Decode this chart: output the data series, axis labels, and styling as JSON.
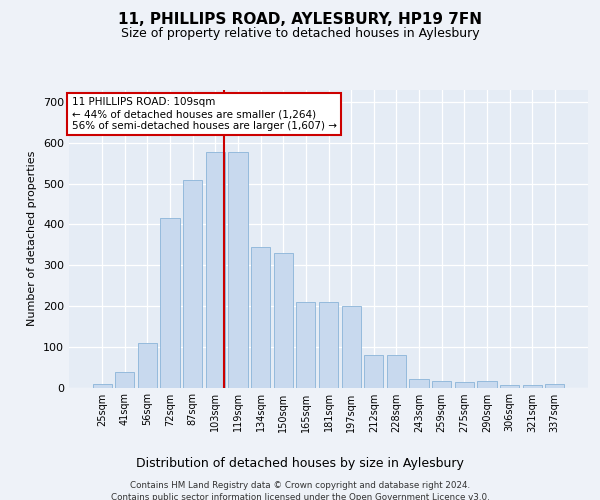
{
  "title1": "11, PHILLIPS ROAD, AYLESBURY, HP19 7FN",
  "title2": "Size of property relative to detached houses in Aylesbury",
  "xlabel": "Distribution of detached houses by size in Aylesbury",
  "ylabel": "Number of detached properties",
  "categories": [
    "25sqm",
    "41sqm",
    "56sqm",
    "72sqm",
    "87sqm",
    "103sqm",
    "119sqm",
    "134sqm",
    "150sqm",
    "165sqm",
    "181sqm",
    "197sqm",
    "212sqm",
    "228sqm",
    "243sqm",
    "259sqm",
    "275sqm",
    "290sqm",
    "306sqm",
    "321sqm",
    "337sqm"
  ],
  "values": [
    8,
    37,
    110,
    415,
    510,
    578,
    578,
    345,
    330,
    210,
    210,
    200,
    80,
    80,
    22,
    15,
    13,
    15,
    5,
    7,
    8
  ],
  "bar_color": "#c8d9ee",
  "bar_edge_color": "#8ab4d8",
  "vline_color": "#cc0000",
  "annotation_line1": "11 PHILLIPS ROAD: 109sqm",
  "annotation_line2": "← 44% of detached houses are smaller (1,264)",
  "annotation_line3": "56% of semi-detached houses are larger (1,607) →",
  "footer1": "Contains HM Land Registry data © Crown copyright and database right 2024.",
  "footer2": "Contains public sector information licensed under the Open Government Licence v3.0.",
  "ylim": [
    0,
    730
  ],
  "yticks": [
    0,
    100,
    200,
    300,
    400,
    500,
    600,
    700
  ],
  "background_color": "#eef2f8",
  "plot_background": "#e5ecf5"
}
